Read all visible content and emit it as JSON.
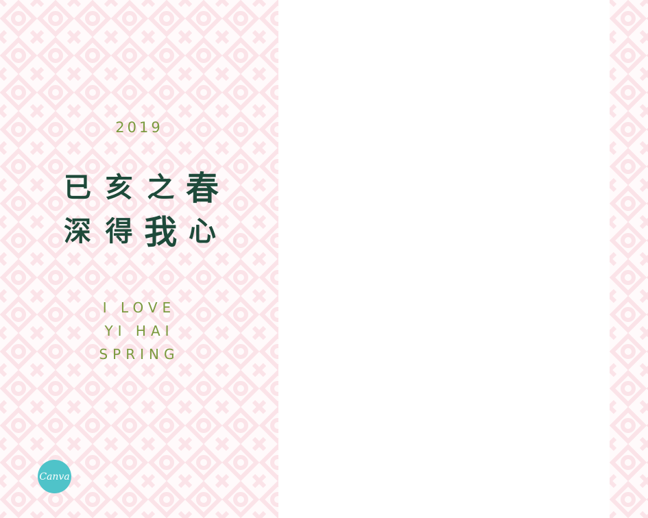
{
  "colors": {
    "pattern_stroke": "#fbe3e8",
    "pattern_bg": "#fffafb",
    "accent_green": "#7a9a3e",
    "ink_green": "#1e4a3a",
    "canva_teal": "#4fc3c9"
  },
  "design": {
    "year": "2019",
    "poem": {
      "line1": [
        "已",
        "亥",
        "之",
        "春"
      ],
      "line2": [
        "深",
        "得",
        "我",
        "心"
      ]
    },
    "english": {
      "line1": "I LOVE",
      "line2": "YI HAI",
      "line3": "SPRING"
    }
  },
  "badge": {
    "label": "Canva"
  }
}
